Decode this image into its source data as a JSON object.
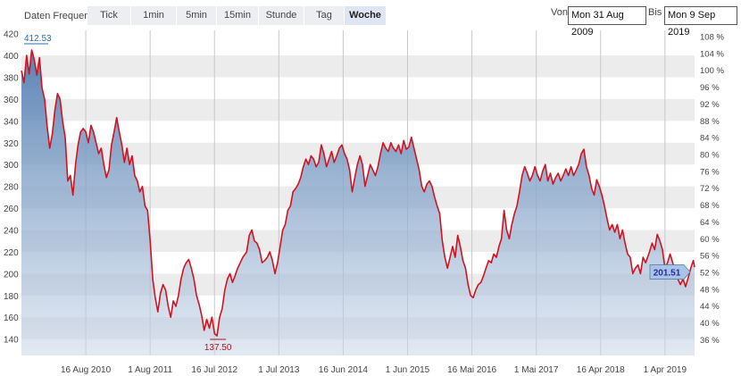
{
  "toolbar": {
    "label": "Daten Frequenz",
    "tabs": [
      "Tick",
      "1min",
      "5min",
      "15min",
      "Stunde",
      "Tag",
      "Woche"
    ],
    "active_tab": "Woche",
    "from_label": "Von",
    "from_value": "Mon 31 Aug 2009",
    "to_label": "Bis",
    "to_value": "Mon 9 Sep 2019"
  },
  "colors": {
    "line": "#d4121f",
    "area_top": "#4f7bb0",
    "area_bottom": "#c9d6e8",
    "band": "#ececec",
    "grid": "#c8c8c8",
    "max_label": "#2a6fb0",
    "min_label": "#b0121f",
    "last_label_bg": "#a9c4e6",
    "last_label_text": "#2a2aa0"
  },
  "chart_data": {
    "type": "area",
    "xlabel": "",
    "ylabel": "",
    "ylim": [
      125,
      423
    ],
    "y_ticks": [
      140,
      160,
      180,
      200,
      220,
      240,
      260,
      280,
      300,
      320,
      340,
      360,
      380,
      400,
      420
    ],
    "right_axis_ticks": [
      "36 %",
      "40 %",
      "44 %",
      "48 %",
      "52 %",
      "56 %",
      "60 %",
      "64 %",
      "68 %",
      "72 %",
      "76 %",
      "80 %",
      "84 %",
      "88 %",
      "92 %",
      "96 %",
      "100 %",
      "104 %",
      "108 %"
    ],
    "right_axis_values": [
      36,
      40,
      44,
      48,
      52,
      56,
      60,
      64,
      68,
      72,
      76,
      80,
      84,
      88,
      92,
      96,
      100,
      104,
      108
    ],
    "x_ticks": [
      {
        "label": "16 Aug 2010",
        "date": "2010-08-16"
      },
      {
        "label": "1 Aug 2011",
        "date": "2011-08-01"
      },
      {
        "label": "16 Jul 2012",
        "date": "2012-07-16"
      },
      {
        "label": "1 Jul 2013",
        "date": "2013-07-01"
      },
      {
        "label": "16 Jun 2014",
        "date": "2014-06-16"
      },
      {
        "label": "1 Jun 2015",
        "date": "2015-06-01"
      },
      {
        "label": "16 Mai 2016",
        "date": "2016-05-16"
      },
      {
        "label": "1 Mai 2017",
        "date": "2017-05-01"
      },
      {
        "label": "16 Apr 2018",
        "date": "2018-04-16"
      },
      {
        "label": "1 Apr 2019",
        "date": "2019-04-01"
      }
    ],
    "x_start": "2009-08-31",
    "x_end": "2019-09-09",
    "max_label": "412.53",
    "min_label": "137.50",
    "last_label": "201.51",
    "series": [
      {
        "values": [
          [
            "2009-08-31",
            386
          ],
          [
            "2009-09-14",
            375
          ],
          [
            "2009-09-28",
            400
          ],
          [
            "2009-10-12",
            383
          ],
          [
            "2009-10-26",
            405
          ],
          [
            "2009-11-09",
            396
          ],
          [
            "2009-11-23",
            382
          ],
          [
            "2009-12-07",
            398
          ],
          [
            "2009-12-21",
            370
          ],
          [
            "2010-01-04",
            360
          ],
          [
            "2010-01-18",
            335
          ],
          [
            "2010-02-01",
            315
          ],
          [
            "2010-02-15",
            328
          ],
          [
            "2010-03-01",
            350
          ],
          [
            "2010-03-15",
            365
          ],
          [
            "2010-03-29",
            360
          ],
          [
            "2010-04-12",
            340
          ],
          [
            "2010-04-26",
            325
          ],
          [
            "2010-05-10",
            285
          ],
          [
            "2010-05-24",
            290
          ],
          [
            "2010-06-07",
            272
          ],
          [
            "2010-06-21",
            300
          ],
          [
            "2010-07-05",
            318
          ],
          [
            "2010-07-19",
            330
          ],
          [
            "2010-08-02",
            333
          ],
          [
            "2010-08-16",
            330
          ],
          [
            "2010-08-30",
            320
          ],
          [
            "2010-09-13",
            336
          ],
          [
            "2010-09-27",
            330
          ],
          [
            "2010-10-11",
            320
          ],
          [
            "2010-10-25",
            310
          ],
          [
            "2010-11-08",
            315
          ],
          [
            "2010-11-22",
            300
          ],
          [
            "2010-12-06",
            288
          ],
          [
            "2010-12-20",
            295
          ],
          [
            "2011-01-03",
            318
          ],
          [
            "2011-01-17",
            330
          ],
          [
            "2011-01-31",
            343
          ],
          [
            "2011-02-14",
            330
          ],
          [
            "2011-02-28",
            318
          ],
          [
            "2011-03-14",
            302
          ],
          [
            "2011-03-28",
            315
          ],
          [
            "2011-04-11",
            300
          ],
          [
            "2011-04-25",
            308
          ],
          [
            "2011-05-09",
            290
          ],
          [
            "2011-05-23",
            285
          ],
          [
            "2011-06-06",
            275
          ],
          [
            "2011-06-20",
            280
          ],
          [
            "2011-07-04",
            262
          ],
          [
            "2011-07-18",
            258
          ],
          [
            "2011-08-01",
            230
          ],
          [
            "2011-08-15",
            195
          ],
          [
            "2011-08-29",
            178
          ],
          [
            "2011-09-12",
            165
          ],
          [
            "2011-09-26",
            182
          ],
          [
            "2011-10-10",
            190
          ],
          [
            "2011-10-24",
            185
          ],
          [
            "2011-11-07",
            170
          ],
          [
            "2011-11-21",
            160
          ],
          [
            "2011-12-05",
            175
          ],
          [
            "2011-12-19",
            170
          ],
          [
            "2012-01-02",
            180
          ],
          [
            "2012-01-16",
            195
          ],
          [
            "2012-01-30",
            205
          ],
          [
            "2012-02-13",
            210
          ],
          [
            "2012-02-27",
            213
          ],
          [
            "2012-03-12",
            205
          ],
          [
            "2012-03-26",
            195
          ],
          [
            "2012-04-09",
            180
          ],
          [
            "2012-04-23",
            172
          ],
          [
            "2012-05-07",
            162
          ],
          [
            "2012-05-21",
            148
          ],
          [
            "2012-06-04",
            158
          ],
          [
            "2012-06-18",
            150
          ],
          [
            "2012-07-02",
            160
          ],
          [
            "2012-07-16",
            145
          ],
          [
            "2012-07-30",
            143
          ],
          [
            "2012-08-13",
            160
          ],
          [
            "2012-08-27",
            168
          ],
          [
            "2012-09-10",
            185
          ],
          [
            "2012-09-24",
            195
          ],
          [
            "2012-10-08",
            200
          ],
          [
            "2012-10-22",
            192
          ],
          [
            "2012-11-05",
            198
          ],
          [
            "2012-11-19",
            205
          ],
          [
            "2012-12-03",
            210
          ],
          [
            "2012-12-17",
            215
          ],
          [
            "2013-01-07",
            220
          ],
          [
            "2013-01-21",
            235
          ],
          [
            "2013-02-04",
            240
          ],
          [
            "2013-02-18",
            230
          ],
          [
            "2013-03-04",
            228
          ],
          [
            "2013-03-18",
            222
          ],
          [
            "2013-04-01",
            210
          ],
          [
            "2013-04-15",
            212
          ],
          [
            "2013-04-29",
            215
          ],
          [
            "2013-05-13",
            220
          ],
          [
            "2013-05-27",
            212
          ],
          [
            "2013-06-10",
            200
          ],
          [
            "2013-06-24",
            210
          ],
          [
            "2013-07-08",
            225
          ],
          [
            "2013-07-22",
            240
          ],
          [
            "2013-08-05",
            245
          ],
          [
            "2013-08-19",
            258
          ],
          [
            "2013-09-02",
            262
          ],
          [
            "2013-09-16",
            275
          ],
          [
            "2013-09-30",
            278
          ],
          [
            "2013-10-14",
            282
          ],
          [
            "2013-10-28",
            288
          ],
          [
            "2013-11-11",
            298
          ],
          [
            "2013-11-25",
            305
          ],
          [
            "2013-12-09",
            300
          ],
          [
            "2013-12-23",
            308
          ],
          [
            "2014-01-06",
            305
          ],
          [
            "2014-01-20",
            298
          ],
          [
            "2014-02-03",
            302
          ],
          [
            "2014-02-17",
            318
          ],
          [
            "2014-03-03",
            310
          ],
          [
            "2014-03-17",
            298
          ],
          [
            "2014-03-31",
            305
          ],
          [
            "2014-04-14",
            312
          ],
          [
            "2014-04-28",
            302
          ],
          [
            "2014-05-12",
            308
          ],
          [
            "2014-05-26",
            315
          ],
          [
            "2014-06-09",
            318
          ],
          [
            "2014-06-23",
            310
          ],
          [
            "2014-07-07",
            305
          ],
          [
            "2014-07-21",
            295
          ],
          [
            "2014-08-04",
            275
          ],
          [
            "2014-08-18",
            288
          ],
          [
            "2014-09-01",
            300
          ],
          [
            "2014-09-15",
            308
          ],
          [
            "2014-09-29",
            300
          ],
          [
            "2014-10-13",
            280
          ],
          [
            "2014-10-27",
            290
          ],
          [
            "2014-11-10",
            300
          ],
          [
            "2014-11-24",
            295
          ],
          [
            "2014-12-08",
            290
          ],
          [
            "2014-12-22",
            298
          ],
          [
            "2015-01-05",
            310
          ],
          [
            "2015-01-19",
            320
          ],
          [
            "2015-02-02",
            315
          ],
          [
            "2015-02-16",
            312
          ],
          [
            "2015-03-02",
            320
          ],
          [
            "2015-03-16",
            315
          ],
          [
            "2015-03-30",
            312
          ],
          [
            "2015-04-13",
            318
          ],
          [
            "2015-04-27",
            310
          ],
          [
            "2015-05-11",
            322
          ],
          [
            "2015-05-25",
            314
          ],
          [
            "2015-06-08",
            316
          ],
          [
            "2015-06-22",
            325
          ],
          [
            "2015-07-06",
            315
          ],
          [
            "2015-07-20",
            305
          ],
          [
            "2015-08-03",
            295
          ],
          [
            "2015-08-17",
            280
          ],
          [
            "2015-08-31",
            275
          ],
          [
            "2015-09-14",
            282
          ],
          [
            "2015-09-28",
            285
          ],
          [
            "2015-10-12",
            280
          ],
          [
            "2015-10-26",
            270
          ],
          [
            "2015-11-09",
            262
          ],
          [
            "2015-11-23",
            255
          ],
          [
            "2015-12-07",
            230
          ],
          [
            "2015-12-21",
            215
          ],
          [
            "2016-01-04",
            205
          ],
          [
            "2016-01-18",
            215
          ],
          [
            "2016-02-01",
            225
          ],
          [
            "2016-02-15",
            215
          ],
          [
            "2016-02-29",
            235
          ],
          [
            "2016-03-14",
            225
          ],
          [
            "2016-03-28",
            212
          ],
          [
            "2016-04-11",
            205
          ],
          [
            "2016-04-25",
            190
          ],
          [
            "2016-05-09",
            180
          ],
          [
            "2016-05-23",
            178
          ],
          [
            "2016-06-06",
            185
          ],
          [
            "2016-06-20",
            190
          ],
          [
            "2016-07-04",
            192
          ],
          [
            "2016-07-18",
            198
          ],
          [
            "2016-08-01",
            205
          ],
          [
            "2016-08-15",
            212
          ],
          [
            "2016-08-29",
            210
          ],
          [
            "2016-09-12",
            218
          ],
          [
            "2016-09-26",
            215
          ],
          [
            "2016-10-10",
            225
          ],
          [
            "2016-10-24",
            232
          ],
          [
            "2016-11-07",
            258
          ],
          [
            "2016-11-21",
            240
          ],
          [
            "2016-12-05",
            232
          ],
          [
            "2016-12-19",
            245
          ],
          [
            "2017-01-02",
            255
          ],
          [
            "2017-01-16",
            262
          ],
          [
            "2017-01-30",
            275
          ],
          [
            "2017-02-13",
            290
          ],
          [
            "2017-02-27",
            298
          ],
          [
            "2017-03-13",
            292
          ],
          [
            "2017-03-27",
            285
          ],
          [
            "2017-04-10",
            290
          ],
          [
            "2017-04-24",
            298
          ],
          [
            "2017-05-08",
            290
          ],
          [
            "2017-05-22",
            285
          ],
          [
            "2017-06-05",
            294
          ],
          [
            "2017-06-19",
            300
          ],
          [
            "2017-07-03",
            285
          ],
          [
            "2017-07-17",
            292
          ],
          [
            "2017-07-31",
            282
          ],
          [
            "2017-08-14",
            288
          ],
          [
            "2017-08-28",
            292
          ],
          [
            "2017-09-11",
            285
          ],
          [
            "2017-09-25",
            290
          ],
          [
            "2017-10-09",
            296
          ],
          [
            "2017-10-23",
            290
          ],
          [
            "2017-11-06",
            298
          ],
          [
            "2017-11-20",
            290
          ],
          [
            "2017-12-04",
            295
          ],
          [
            "2017-12-18",
            300
          ],
          [
            "2018-01-01",
            310
          ],
          [
            "2018-01-15",
            314
          ],
          [
            "2018-01-29",
            298
          ],
          [
            "2018-02-12",
            290
          ],
          [
            "2018-02-26",
            278
          ],
          [
            "2018-03-12",
            272
          ],
          [
            "2018-03-26",
            286
          ],
          [
            "2018-04-09",
            280
          ],
          [
            "2018-04-23",
            272
          ],
          [
            "2018-05-07",
            262
          ],
          [
            "2018-05-21",
            250
          ],
          [
            "2018-06-04",
            240
          ],
          [
            "2018-06-18",
            245
          ],
          [
            "2018-07-02",
            238
          ],
          [
            "2018-07-16",
            245
          ],
          [
            "2018-07-30",
            232
          ],
          [
            "2018-08-13",
            240
          ],
          [
            "2018-08-27",
            228
          ],
          [
            "2018-09-10",
            218
          ],
          [
            "2018-09-24",
            215
          ],
          [
            "2018-10-08",
            200
          ],
          [
            "2018-10-22",
            205
          ],
          [
            "2018-11-05",
            208
          ],
          [
            "2018-11-19",
            200
          ],
          [
            "2018-12-03",
            215
          ],
          [
            "2018-12-17",
            210
          ],
          [
            "2019-01-07",
            220
          ],
          [
            "2019-01-21",
            228
          ],
          [
            "2019-02-04",
            222
          ],
          [
            "2019-02-18",
            236
          ],
          [
            "2019-03-04",
            230
          ],
          [
            "2019-03-18",
            222
          ],
          [
            "2019-04-01",
            205
          ],
          [
            "2019-04-15",
            210
          ],
          [
            "2019-04-29",
            218
          ],
          [
            "2019-05-13",
            210
          ],
          [
            "2019-05-27",
            200
          ],
          [
            "2019-06-10",
            195
          ],
          [
            "2019-06-24",
            190
          ],
          [
            "2019-07-08",
            195
          ],
          [
            "2019-07-22",
            188
          ],
          [
            "2019-08-05",
            196
          ],
          [
            "2019-08-19",
            205
          ],
          [
            "2019-09-02",
            212
          ],
          [
            "2019-09-09",
            206
          ]
        ]
      }
    ]
  }
}
